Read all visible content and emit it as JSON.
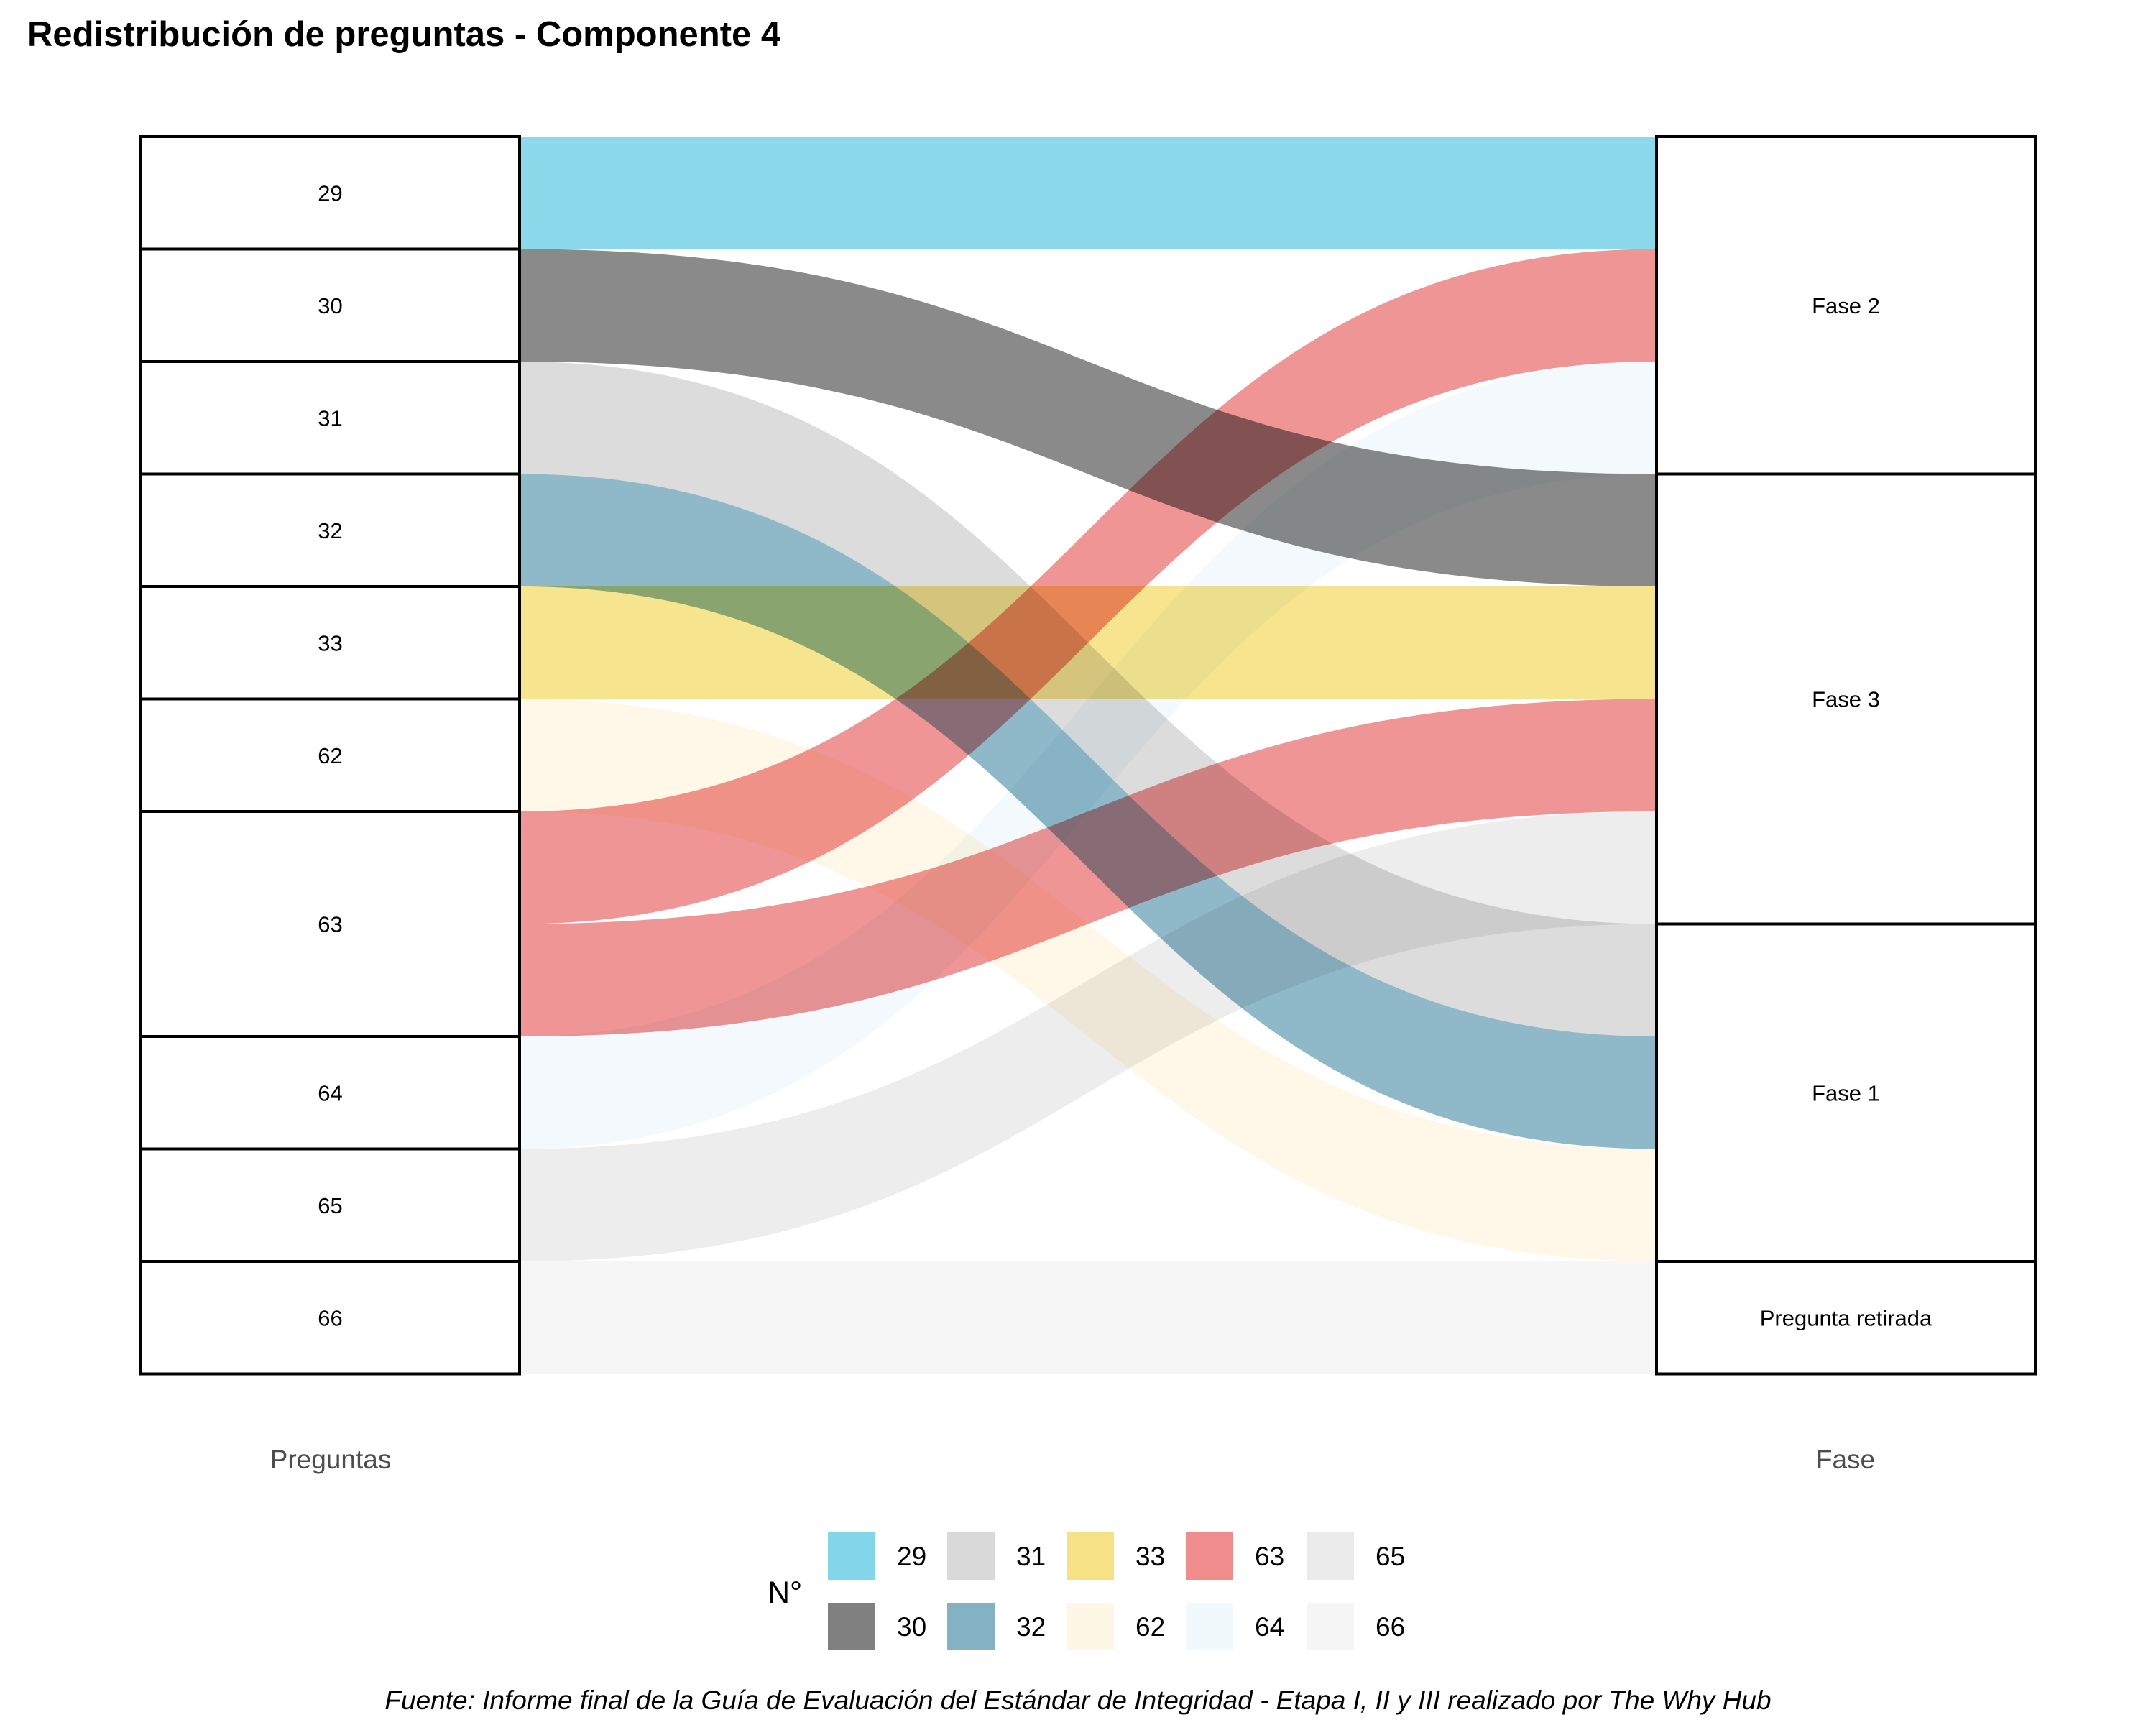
{
  "title": "Redistribución de preguntas - Componente 4",
  "caption": "Fuente: Informe final de la Guía de Evaluación del Estándar de Integridad - Etapa I, II y III realizado por The Why Hub",
  "axes": {
    "left": "Preguntas",
    "right": "Fase"
  },
  "legend": {
    "title": "N°",
    "items": [
      {
        "label": "29",
        "color": "#83d6ea"
      },
      {
        "label": "30",
        "color": "#808080"
      },
      {
        "label": "31",
        "color": "#d9d9d9"
      },
      {
        "label": "32",
        "color": "#85b2c3"
      },
      {
        "label": "33",
        "color": "#f6e285"
      },
      {
        "label": "62",
        "color": "#fff7e6"
      },
      {
        "label": "63",
        "color": "#ef8c8c"
      },
      {
        "label": "64",
        "color": "#f2f9fc"
      },
      {
        "label": "65",
        "color": "#ebebeb"
      },
      {
        "label": "66",
        "color": "#f5f5f5"
      }
    ]
  },
  "chart_data": {
    "type": "alluvial",
    "title": "Redistribución de preguntas - Componente 4",
    "stages": [
      "Preguntas",
      "Fase"
    ],
    "left_nodes": [
      "29",
      "30",
      "31",
      "32",
      "33",
      "62",
      "63",
      "64",
      "65",
      "66"
    ],
    "right_nodes": [
      "Fase 2",
      "Fase 3",
      "Fase 1",
      "Pregunta retirada"
    ],
    "flows": [
      {
        "from": "29",
        "to": "Fase 2",
        "value": 1
      },
      {
        "from": "30",
        "to": "Fase 3",
        "value": 1
      },
      {
        "from": "31",
        "to": "Fase 1",
        "value": 1
      },
      {
        "from": "32",
        "to": "Fase 1",
        "value": 1
      },
      {
        "from": "33",
        "to": "Fase 3",
        "value": 1
      },
      {
        "from": "62",
        "to": "Fase 1",
        "value": 1
      },
      {
        "from": "63",
        "to": "Fase 2",
        "value": 1
      },
      {
        "from": "63",
        "to": "Fase 3",
        "value": 1
      },
      {
        "from": "64",
        "to": "Fase 2",
        "value": 1
      },
      {
        "from": "65",
        "to": "Fase 3",
        "value": 1
      },
      {
        "from": "66",
        "to": "Pregunta retirada",
        "value": 1
      }
    ],
    "legend_title": "N°",
    "legend_position": "bottom"
  }
}
